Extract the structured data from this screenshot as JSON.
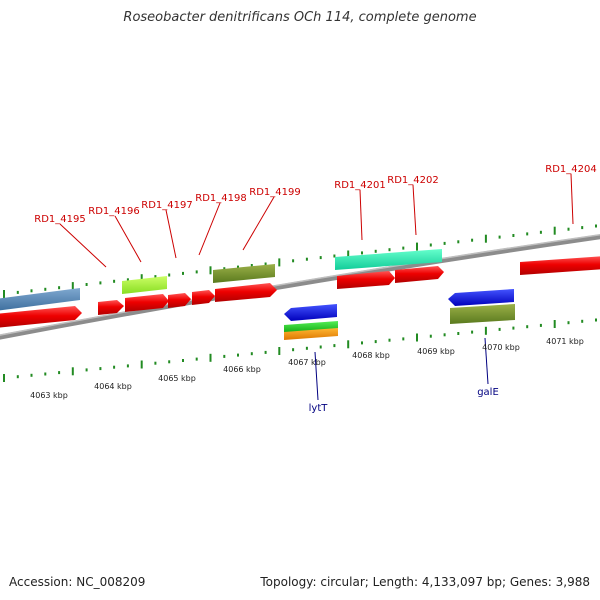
{
  "title": "Roseobacter denitrificans OCh 114, complete genome",
  "footer": {
    "accession": "Accession: NC_008209",
    "summary": "Topology: circular; Length: 4,133,097 bp; Genes: 3,988"
  },
  "colors": {
    "label_red": "#cc0000",
    "label_blue": "#000080",
    "backbone": "#8c8c8c",
    "tick": "#228b22"
  },
  "upper_labels": [
    "RD1_4195",
    "RD1_4196",
    "RD1_4197",
    "RD1_4198",
    "RD1_4199",
    "RD1_4201",
    "RD1_4202",
    "RD1_4204"
  ],
  "lower_labels": [
    "lytT",
    "galE"
  ],
  "kbp_labels": [
    "4063 kbp",
    "4064 kbp",
    "4065 kbp",
    "4066 kbp",
    "4067 kbp",
    "4068 kbp",
    "4069 kbp",
    "4070 kbp",
    "4071 kbp"
  ]
}
